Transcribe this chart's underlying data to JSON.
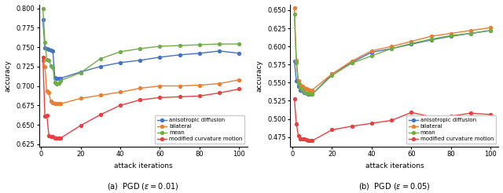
{
  "left": {
    "caption": "(a)  PGD ($\\epsilon = 0.01$)",
    "xlabel": "attack iterations",
    "ylabel": "accuracy",
    "ylim": [
      0.622,
      0.805
    ],
    "yticks": [
      0.625,
      0.65,
      0.675,
      0.7,
      0.725,
      0.75,
      0.775,
      0.8
    ],
    "xticks": [
      0,
      20,
      40,
      60,
      80,
      100
    ],
    "series": {
      "anisotropic diffusion": {
        "color": "#4472c4",
        "x": [
          1,
          2,
          3,
          4,
          5,
          6,
          7,
          8,
          9,
          10,
          20,
          30,
          40,
          50,
          60,
          70,
          80,
          90,
          100
        ],
        "y": [
          0.785,
          0.749,
          0.748,
          0.747,
          0.746,
          0.745,
          0.711,
          0.71,
          0.71,
          0.71,
          0.718,
          0.725,
          0.73,
          0.733,
          0.737,
          0.74,
          0.742,
          0.745,
          0.742
        ]
      },
      "bilateral": {
        "color": "#ed7d31",
        "x": [
          1,
          2,
          3,
          4,
          5,
          6,
          7,
          8,
          9,
          10,
          20,
          30,
          40,
          50,
          60,
          70,
          80,
          90,
          100
        ],
        "y": [
          0.733,
          0.725,
          0.693,
          0.691,
          0.68,
          0.678,
          0.677,
          0.677,
          0.677,
          0.677,
          0.684,
          0.688,
          0.692,
          0.697,
          0.7,
          0.7,
          0.701,
          0.703,
          0.708
        ]
      },
      "mean": {
        "color": "#70ad47",
        "x": [
          1,
          2,
          3,
          4,
          5,
          6,
          7,
          8,
          9,
          10,
          20,
          30,
          40,
          50,
          60,
          70,
          80,
          90,
          100
        ],
        "y": [
          0.8,
          0.756,
          0.734,
          0.733,
          0.726,
          0.724,
          0.705,
          0.703,
          0.704,
          0.707,
          0.717,
          0.735,
          0.744,
          0.748,
          0.751,
          0.752,
          0.753,
          0.754,
          0.754
        ]
      },
      "modified curvature motion": {
        "color": "#e84040",
        "x": [
          1,
          2,
          3,
          4,
          5,
          6,
          7,
          8,
          9,
          10,
          20,
          30,
          40,
          50,
          60,
          70,
          80,
          90,
          100
        ],
        "y": [
          0.737,
          0.661,
          0.662,
          0.636,
          0.635,
          0.635,
          0.633,
          0.633,
          0.633,
          0.633,
          0.649,
          0.663,
          0.675,
          0.682,
          0.685,
          0.686,
          0.687,
          0.691,
          0.696
        ]
      }
    }
  },
  "right": {
    "caption": "(b)  PGD ($\\epsilon = 0.05$)",
    "xlabel": "attack iterations",
    "ylabel": "accuracy",
    "ylim": [
      0.462,
      0.658
    ],
    "yticks": [
      0.475,
      0.5,
      0.525,
      0.55,
      0.575,
      0.6,
      0.625,
      0.65
    ],
    "xticks": [
      0,
      20,
      40,
      60,
      80,
      100
    ],
    "series": {
      "anisotropic diffusion": {
        "color": "#4472c4",
        "x": [
          1,
          2,
          3,
          4,
          5,
          6,
          7,
          8,
          9,
          10,
          20,
          30,
          40,
          50,
          60,
          70,
          80,
          90,
          100
        ],
        "y": [
          0.58,
          0.553,
          0.545,
          0.54,
          0.538,
          0.536,
          0.535,
          0.534,
          0.534,
          0.534,
          0.562,
          0.578,
          0.592,
          0.597,
          0.603,
          0.609,
          0.614,
          0.618,
          0.622
        ]
      },
      "bilateral": {
        "color": "#ed7d31",
        "x": [
          1,
          2,
          3,
          4,
          5,
          6,
          7,
          8,
          9,
          10,
          20,
          30,
          40,
          50,
          60,
          70,
          80,
          90,
          100
        ],
        "y": [
          0.653,
          0.581,
          0.553,
          0.547,
          0.545,
          0.543,
          0.542,
          0.541,
          0.54,
          0.54,
          0.562,
          0.58,
          0.594,
          0.6,
          0.607,
          0.614,
          0.618,
          0.622,
          0.626
        ]
      },
      "mean": {
        "color": "#70ad47",
        "x": [
          1,
          2,
          3,
          4,
          5,
          6,
          7,
          8,
          9,
          10,
          20,
          30,
          40,
          50,
          60,
          70,
          80,
          90,
          100
        ],
        "y": [
          0.645,
          0.578,
          0.549,
          0.543,
          0.54,
          0.537,
          0.535,
          0.535,
          0.534,
          0.534,
          0.56,
          0.577,
          0.587,
          0.597,
          0.604,
          0.61,
          0.615,
          0.618,
          0.622
        ]
      },
      "modified curvature motion": {
        "color": "#e84040",
        "x": [
          1,
          2,
          3,
          4,
          5,
          6,
          7,
          8,
          9,
          10,
          20,
          30,
          40,
          50,
          60,
          70,
          80,
          90,
          100
        ],
        "y": [
          0.528,
          0.493,
          0.477,
          0.473,
          0.472,
          0.472,
          0.471,
          0.47,
          0.47,
          0.47,
          0.485,
          0.49,
          0.494,
          0.498,
          0.509,
          0.503,
          0.504,
          0.508,
          0.506
        ]
      }
    }
  }
}
